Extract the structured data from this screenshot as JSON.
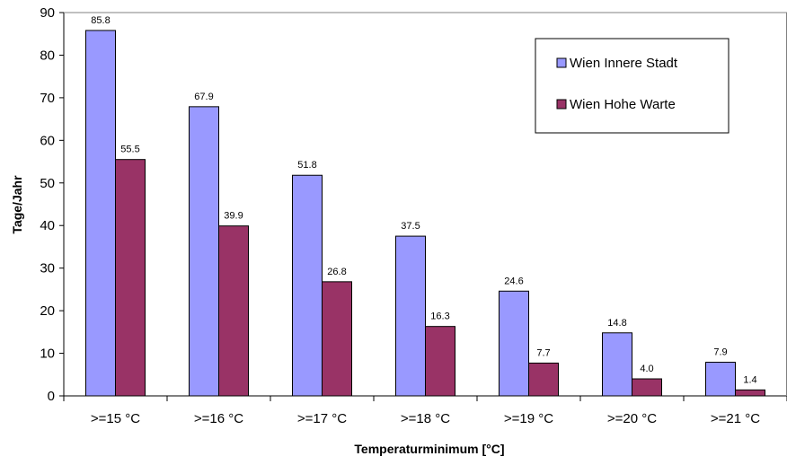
{
  "chart_data": {
    "type": "bar",
    "xlabel": "Temperaturminimum [°C]",
    "ylabel": "Tage/Jahr",
    "ylim": [
      0,
      90
    ],
    "yticks": [
      0,
      10,
      20,
      30,
      40,
      50,
      60,
      70,
      80,
      90
    ],
    "categories": [
      ">=15 °C",
      ">=16 °C",
      ">=17 °C",
      ">=18 °C",
      ">=19 °C",
      ">=20 °C",
      ">=21 °C"
    ],
    "series": [
      {
        "name": "Wien Innere Stadt",
        "color": "#9999ff",
        "values": [
          85.8,
          67.9,
          51.8,
          37.5,
          24.6,
          14.8,
          7.9
        ],
        "labels": [
          "85.8",
          "67.9",
          "51.8",
          "37.5",
          "24.6",
          "14.8",
          "7.9"
        ]
      },
      {
        "name": "Wien Hohe Warte",
        "color": "#993366",
        "values": [
          55.5,
          39.9,
          26.8,
          16.3,
          7.7,
          4.0,
          1.4
        ],
        "labels": [
          "55.5",
          "39.9",
          "26.8",
          "16.3",
          "7.7",
          "4.0",
          "1.4"
        ]
      }
    ],
    "grid": false,
    "legend_position": "top-right"
  }
}
